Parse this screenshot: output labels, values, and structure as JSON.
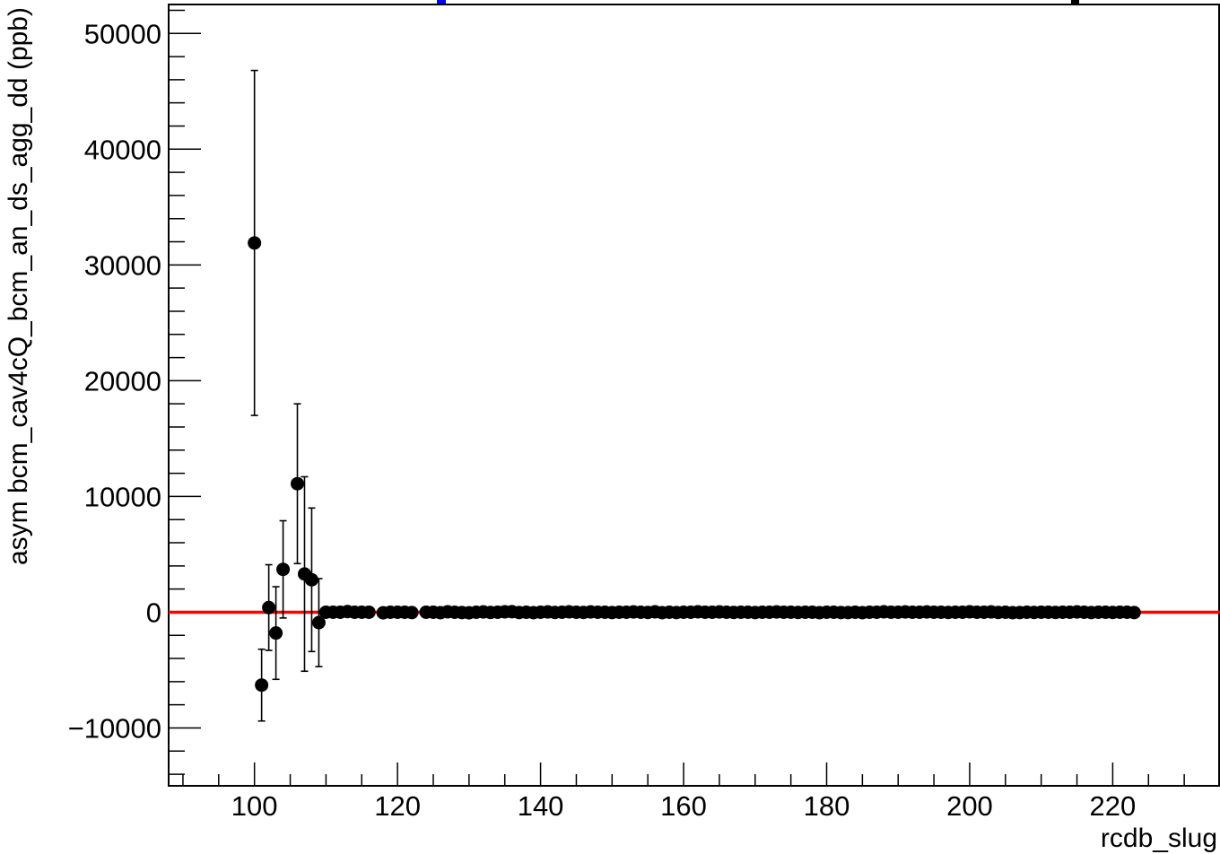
{
  "chart_data": {
    "type": "scatter",
    "title": "",
    "xlabel": "rcdb_slug",
    "ylabel": "asym bcm_cav4cQ_bcm_an_ds_agg_dd (ppb)",
    "xlim": [
      88,
      235
    ],
    "ylim": [
      -15000,
      52500
    ],
    "xticks": [
      100,
      120,
      140,
      160,
      180,
      200,
      220
    ],
    "yticks": [
      -10000,
      0,
      10000,
      20000,
      30000,
      40000,
      50000
    ],
    "ytick_labels": [
      "−10000",
      "0",
      "10000",
      "20000",
      "30000",
      "40000",
      "50000"
    ],
    "grid": false,
    "legend": "none",
    "reference_line": {
      "y": 0,
      "color": "#ff0000"
    },
    "marker_color": "#000000",
    "series": [
      {
        "points": [
          {
            "x": 100,
            "y": 31900,
            "err": 14900
          },
          {
            "x": 101,
            "y": -6300,
            "err": 3100
          },
          {
            "x": 102,
            "y": 400,
            "err": 3700
          },
          {
            "x": 103,
            "y": -1800,
            "err": 4000
          },
          {
            "x": 104,
            "y": 3700,
            "err": 4200
          },
          {
            "x": 106,
            "y": 11100,
            "err": 6900
          },
          {
            "x": 107,
            "y": 3300,
            "err": 8400
          },
          {
            "x": 108,
            "y": 2800,
            "err": 6200
          },
          {
            "x": 109,
            "y": -900,
            "err": 3800
          },
          {
            "x": 110,
            "y": 0,
            "err": 200
          },
          {
            "x": 111,
            "y": 0,
            "err": 200
          },
          {
            "x": 112,
            "y": 0,
            "err": 200
          },
          {
            "x": 113,
            "y": 50,
            "err": 200
          },
          {
            "x": 114,
            "y": 0,
            "err": 200
          },
          {
            "x": 115,
            "y": 0,
            "err": 200
          },
          {
            "x": 116,
            "y": 0,
            "err": 200
          },
          {
            "x": 118,
            "y": -50,
            "err": 200
          },
          {
            "x": 119,
            "y": 0,
            "err": 200
          },
          {
            "x": 120,
            "y": 0,
            "err": 200
          },
          {
            "x": 121,
            "y": 0,
            "err": 200
          },
          {
            "x": 122,
            "y": -30,
            "err": 200
          },
          {
            "x": 124,
            "y": 0,
            "err": 150
          },
          {
            "x": 125,
            "y": 0,
            "err": 150
          },
          {
            "x": 126,
            "y": -40,
            "err": 150
          },
          {
            "x": 127,
            "y": 30,
            "err": 150
          },
          {
            "x": 128,
            "y": 0,
            "err": 150
          },
          {
            "x": 129,
            "y": -30,
            "err": 150
          },
          {
            "x": 130,
            "y": -50,
            "err": 150
          },
          {
            "x": 131,
            "y": 0,
            "err": 150
          },
          {
            "x": 132,
            "y": 20,
            "err": 150
          },
          {
            "x": 133,
            "y": -20,
            "err": 150
          },
          {
            "x": 134,
            "y": 0,
            "err": 150
          },
          {
            "x": 135,
            "y": 30,
            "err": 150
          },
          {
            "x": 136,
            "y": 40,
            "err": 150
          },
          {
            "x": 137,
            "y": -30,
            "err": 150
          },
          {
            "x": 138,
            "y": 0,
            "err": 150
          },
          {
            "x": 139,
            "y": -40,
            "err": 150
          },
          {
            "x": 140,
            "y": 0,
            "err": 150
          },
          {
            "x": 141,
            "y": 20,
            "err": 150
          },
          {
            "x": 142,
            "y": -20,
            "err": 150
          },
          {
            "x": 143,
            "y": 0,
            "err": 150
          },
          {
            "x": 144,
            "y": 30,
            "err": 150
          },
          {
            "x": 145,
            "y": 0,
            "err": 150
          },
          {
            "x": 146,
            "y": -20,
            "err": 150
          },
          {
            "x": 147,
            "y": 20,
            "err": 150
          },
          {
            "x": 148,
            "y": 0,
            "err": 150
          },
          {
            "x": 149,
            "y": 0,
            "err": 150
          },
          {
            "x": 150,
            "y": -30,
            "err": 150
          },
          {
            "x": 151,
            "y": 0,
            "err": 150
          },
          {
            "x": 152,
            "y": 0,
            "err": 150
          },
          {
            "x": 153,
            "y": 20,
            "err": 150
          },
          {
            "x": 154,
            "y": 0,
            "err": 150
          },
          {
            "x": 155,
            "y": -20,
            "err": 150
          },
          {
            "x": 156,
            "y": 30,
            "err": 150
          },
          {
            "x": 157,
            "y": -40,
            "err": 150
          },
          {
            "x": 158,
            "y": 0,
            "err": 150
          },
          {
            "x": 159,
            "y": -30,
            "err": 150
          },
          {
            "x": 160,
            "y": 0,
            "err": 150
          },
          {
            "x": 161,
            "y": 0,
            "err": 150
          },
          {
            "x": 162,
            "y": 30,
            "err": 150
          },
          {
            "x": 163,
            "y": 0,
            "err": 150
          },
          {
            "x": 164,
            "y": 0,
            "err": 150
          },
          {
            "x": 165,
            "y": 20,
            "err": 150
          },
          {
            "x": 166,
            "y": 0,
            "err": 150
          },
          {
            "x": 167,
            "y": -20,
            "err": 150
          },
          {
            "x": 168,
            "y": 0,
            "err": 150
          },
          {
            "x": 169,
            "y": 0,
            "err": 150
          },
          {
            "x": 170,
            "y": -30,
            "err": 150
          },
          {
            "x": 171,
            "y": 0,
            "err": 150
          },
          {
            "x": 172,
            "y": 0,
            "err": 150
          },
          {
            "x": 173,
            "y": 20,
            "err": 150
          },
          {
            "x": 174,
            "y": 0,
            "err": 150
          },
          {
            "x": 175,
            "y": 0,
            "err": 150
          },
          {
            "x": 176,
            "y": -20,
            "err": 150
          },
          {
            "x": 177,
            "y": 0,
            "err": 150
          },
          {
            "x": 178,
            "y": 0,
            "err": 150
          },
          {
            "x": 179,
            "y": -40,
            "err": 150
          },
          {
            "x": 180,
            "y": 0,
            "err": 150
          },
          {
            "x": 181,
            "y": 0,
            "err": 150
          },
          {
            "x": 182,
            "y": -30,
            "err": 150
          },
          {
            "x": 183,
            "y": -30,
            "err": 150
          },
          {
            "x": 184,
            "y": 0,
            "err": 150
          },
          {
            "x": 185,
            "y": -40,
            "err": 150
          },
          {
            "x": 186,
            "y": 0,
            "err": 150
          },
          {
            "x": 187,
            "y": 0,
            "err": 150
          },
          {
            "x": 188,
            "y": 30,
            "err": 150
          },
          {
            "x": 189,
            "y": 0,
            "err": 150
          },
          {
            "x": 190,
            "y": 0,
            "err": 150
          },
          {
            "x": 191,
            "y": 20,
            "err": 150
          },
          {
            "x": 192,
            "y": 0,
            "err": 150
          },
          {
            "x": 193,
            "y": 0,
            "err": 150
          },
          {
            "x": 194,
            "y": 20,
            "err": 150
          },
          {
            "x": 195,
            "y": 0,
            "err": 150
          },
          {
            "x": 196,
            "y": 0,
            "err": 150
          },
          {
            "x": 197,
            "y": -20,
            "err": 150
          },
          {
            "x": 198,
            "y": 0,
            "err": 150
          },
          {
            "x": 199,
            "y": 0,
            "err": 150
          },
          {
            "x": 200,
            "y": 30,
            "err": 150
          },
          {
            "x": 201,
            "y": 0,
            "err": 150
          },
          {
            "x": 202,
            "y": 0,
            "err": 150
          },
          {
            "x": 203,
            "y": 20,
            "err": 150
          },
          {
            "x": 204,
            "y": -20,
            "err": 150
          },
          {
            "x": 205,
            "y": 0,
            "err": 150
          },
          {
            "x": 206,
            "y": -40,
            "err": 150
          },
          {
            "x": 207,
            "y": -30,
            "err": 150
          },
          {
            "x": 208,
            "y": 0,
            "err": 150
          },
          {
            "x": 209,
            "y": -20,
            "err": 150
          },
          {
            "x": 210,
            "y": 0,
            "err": 150
          },
          {
            "x": 211,
            "y": 0,
            "err": 150
          },
          {
            "x": 212,
            "y": -20,
            "err": 150
          },
          {
            "x": 213,
            "y": 0,
            "err": 150
          },
          {
            "x": 214,
            "y": 0,
            "err": 150
          },
          {
            "x": 215,
            "y": 20,
            "err": 150
          },
          {
            "x": 216,
            "y": 0,
            "err": 150
          },
          {
            "x": 217,
            "y": -30,
            "err": 150
          },
          {
            "x": 218,
            "y": 0,
            "err": 150
          },
          {
            "x": 219,
            "y": 0,
            "err": 150
          },
          {
            "x": 220,
            "y": -20,
            "err": 150
          },
          {
            "x": 221,
            "y": 0,
            "err": 150
          },
          {
            "x": 222,
            "y": 0,
            "err": 150
          },
          {
            "x": 223,
            "y": -30,
            "err": 150
          }
        ]
      }
    ]
  }
}
